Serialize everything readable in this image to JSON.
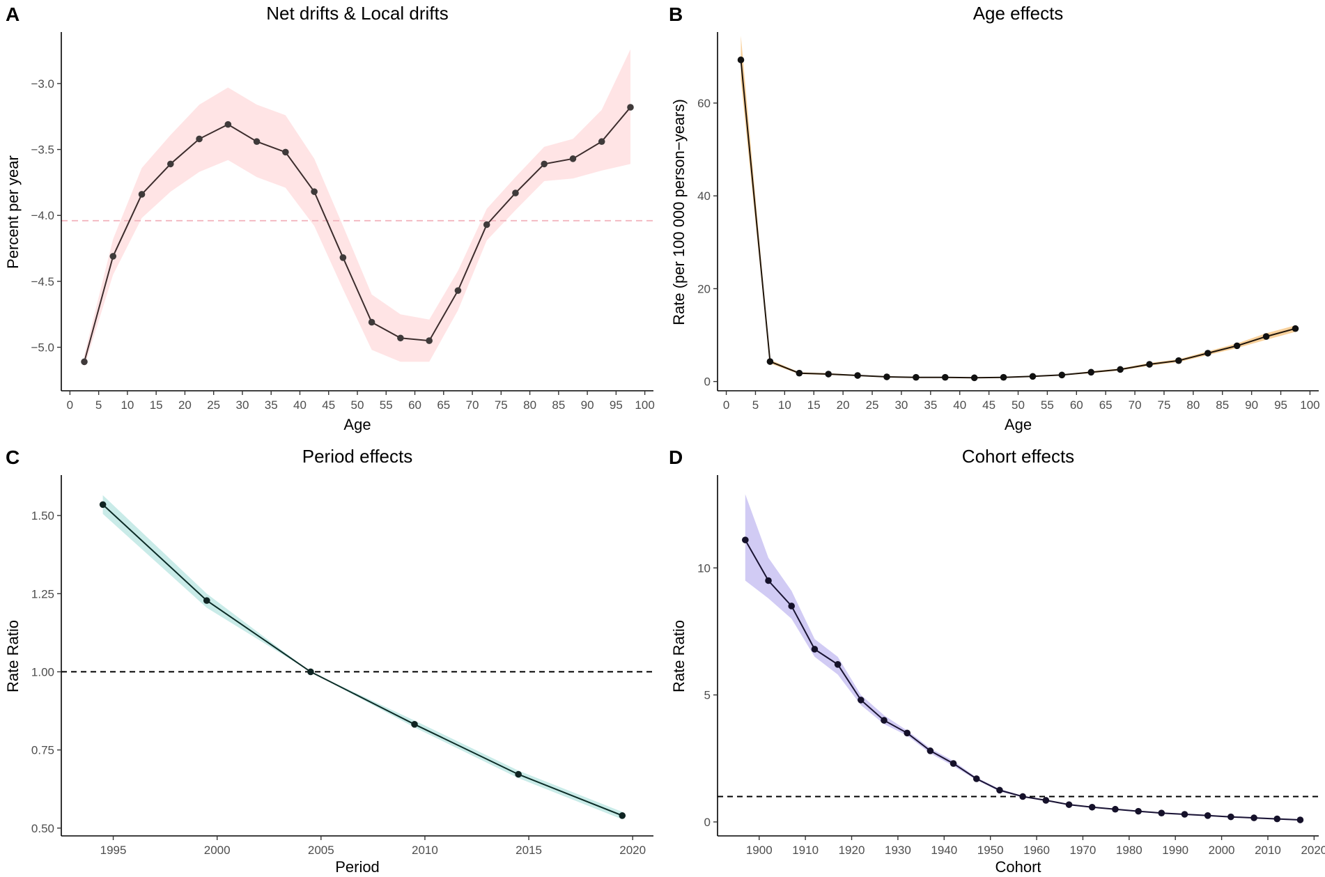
{
  "chart_data": [
    {
      "type": "line",
      "panel_label": "A",
      "title": "Net drifts & Local drifts",
      "xlabel": "Age",
      "ylabel": "Percent per year",
      "xlim": [
        -1.5,
        101.5
      ],
      "ylim": [
        -5.33,
        -2.62
      ],
      "xticks": [
        0,
        5,
        10,
        15,
        20,
        25,
        30,
        35,
        40,
        45,
        50,
        55,
        60,
        65,
        70,
        75,
        80,
        85,
        90,
        95,
        100
      ],
      "yticks": [
        -5.0,
        -4.5,
        -4.0,
        -3.5,
        -3.0
      ],
      "ytick_labels": [
        "−5.0",
        "−4.5",
        "−4.0",
        "−3.5",
        "−3.0"
      ],
      "colors": {
        "band": "#ffdfe1",
        "line": "#3c2c2c",
        "point": "#3f3a3a",
        "ref": "#f2b6bf"
      },
      "reference_line": -4.04,
      "series": [
        {
          "name": "Local drifts",
          "x": [
            2.5,
            7.5,
            12.5,
            17.5,
            22.5,
            27.5,
            32.5,
            37.5,
            42.5,
            47.5,
            52.5,
            57.5,
            62.5,
            67.5,
            72.5,
            77.5,
            82.5,
            87.5,
            92.5,
            97.5
          ],
          "y": [
            -5.11,
            -4.31,
            -3.84,
            -3.61,
            -3.42,
            -3.31,
            -3.44,
            -3.52,
            -3.82,
            -4.32,
            -4.81,
            -4.93,
            -4.95,
            -4.57,
            -4.07,
            -3.83,
            -3.61,
            -3.57,
            -3.44,
            -3.18
          ],
          "lower": [
            -5.15,
            -4.45,
            -4.02,
            -3.82,
            -3.67,
            -3.58,
            -3.71,
            -3.79,
            -4.08,
            -4.56,
            -5.02,
            -5.11,
            -5.11,
            -4.72,
            -4.19,
            -3.96,
            -3.74,
            -3.72,
            -3.66,
            -3.61
          ],
          "upper": [
            -5.06,
            -4.18,
            -3.64,
            -3.39,
            -3.16,
            -3.03,
            -3.16,
            -3.24,
            -3.57,
            -4.08,
            -4.6,
            -4.75,
            -4.79,
            -4.42,
            -3.95,
            -3.71,
            -3.48,
            -3.42,
            -3.2,
            -2.74
          ]
        }
      ]
    },
    {
      "type": "line",
      "panel_label": "B",
      "title": "Age effects",
      "xlabel": "Age",
      "ylabel": "Rate (per 100 000 person−years)",
      "xlim": [
        -1.5,
        101.5
      ],
      "ylim": [
        -2,
        75
      ],
      "xticks": [
        0,
        5,
        10,
        15,
        20,
        25,
        30,
        35,
        40,
        45,
        50,
        55,
        60,
        65,
        70,
        75,
        80,
        85,
        90,
        95,
        100
      ],
      "yticks": [
        0,
        20,
        40,
        60
      ],
      "ytick_labels": [
        "0",
        "20",
        "40",
        "60"
      ],
      "colors": {
        "band": "#f7c98b",
        "line": "#1e140a",
        "point": "#111111",
        "ref": ""
      },
      "series": [
        {
          "name": "Age effects",
          "x": [
            2.5,
            7.5,
            12.5,
            17.5,
            22.5,
            27.5,
            32.5,
            37.5,
            42.5,
            47.5,
            52.5,
            57.5,
            62.5,
            67.5,
            72.5,
            77.5,
            82.5,
            87.5,
            92.5,
            97.5
          ],
          "y": [
            69.3,
            4.3,
            1.8,
            1.6,
            1.3,
            1.0,
            0.9,
            0.9,
            0.8,
            0.9,
            1.1,
            1.4,
            2.0,
            2.6,
            3.7,
            4.5,
            6.1,
            7.7,
            9.7,
            11.4
          ],
          "lower": [
            65.0,
            3.9,
            1.6,
            1.4,
            1.2,
            0.9,
            0.8,
            0.8,
            0.7,
            0.8,
            1.0,
            1.3,
            1.8,
            2.4,
            3.4,
            4.2,
            5.7,
            7.2,
            9.0,
            10.7
          ],
          "upper": [
            74.5,
            4.7,
            2.0,
            1.8,
            1.4,
            1.1,
            1.0,
            1.0,
            0.9,
            1.0,
            1.2,
            1.5,
            2.2,
            2.8,
            4.0,
            4.8,
            6.5,
            8.2,
            10.4,
            12.1
          ]
        }
      ]
    },
    {
      "type": "line",
      "panel_label": "C",
      "title": "Period effects",
      "xlabel": "Period",
      "ylabel": "Rate Ratio",
      "xlim": [
        1992.5,
        2021
      ],
      "ylim": [
        0.475,
        1.625
      ],
      "xticks": [
        1995,
        2000,
        2005,
        2010,
        2015,
        2020
      ],
      "yticks": [
        0.5,
        0.75,
        1.0,
        1.25,
        1.5
      ],
      "ytick_labels": [
        "0.50",
        "0.75",
        "1.00",
        "1.25",
        "1.50"
      ],
      "colors": {
        "band": "#bfe8e4",
        "line": "#0b2b26",
        "point": "#0f2422",
        "ref": "#000000"
      },
      "reference_line": 1.0,
      "series": [
        {
          "name": "Period effects",
          "x": [
            1994.5,
            1999.5,
            2004.5,
            2009.5,
            2014.5,
            2019.5
          ],
          "y": [
            1.535,
            1.228,
            1.0,
            0.832,
            0.672,
            0.54
          ],
          "lower": [
            1.505,
            1.205,
            1.0,
            0.822,
            0.66,
            0.528
          ],
          "upper": [
            1.565,
            1.25,
            1.0,
            0.844,
            0.684,
            0.552
          ]
        }
      ]
    },
    {
      "type": "line",
      "panel_label": "D",
      "title": "Cohort effects",
      "xlabel": "Cohort",
      "ylabel": "Rate Ratio",
      "xlim": [
        1891,
        2021
      ],
      "ylim": [
        -0.55,
        13.6
      ],
      "xticks": [
        1900,
        1910,
        1920,
        1930,
        1940,
        1950,
        1960,
        1970,
        1980,
        1990,
        2000,
        2010,
        2020
      ],
      "yticks": [
        0,
        5,
        10
      ],
      "ytick_labels": [
        "0",
        "5",
        "10"
      ],
      "colors": {
        "band": "#c9c2f2",
        "line": "#1a1433",
        "point": "#15112a",
        "ref": "#000000"
      },
      "reference_line": 1.0,
      "series": [
        {
          "name": "Cohort effects",
          "x": [
            1897,
            1902,
            1907,
            1912,
            1917,
            1922,
            1927,
            1932,
            1937,
            1942,
            1947,
            1952,
            1957,
            1962,
            1967,
            1972,
            1977,
            1982,
            1987,
            1992,
            1997,
            2002,
            2007,
            2012,
            2017
          ],
          "y": [
            11.1,
            9.5,
            8.5,
            6.8,
            6.2,
            4.8,
            4.0,
            3.5,
            2.8,
            2.3,
            1.7,
            1.25,
            1.0,
            0.85,
            0.68,
            0.58,
            0.5,
            0.42,
            0.35,
            0.3,
            0.25,
            0.2,
            0.16,
            0.12,
            0.08
          ],
          "lower": [
            9.5,
            8.8,
            8.0,
            6.5,
            5.8,
            4.6,
            3.85,
            3.4,
            2.7,
            2.2,
            1.65,
            1.2,
            0.97,
            0.82,
            0.65,
            0.55,
            0.47,
            0.39,
            0.32,
            0.27,
            0.22,
            0.17,
            0.13,
            0.09,
            0.05
          ],
          "upper": [
            12.9,
            10.4,
            9.1,
            7.2,
            6.5,
            5.0,
            4.2,
            3.6,
            2.9,
            2.4,
            1.75,
            1.3,
            1.03,
            0.88,
            0.71,
            0.61,
            0.53,
            0.45,
            0.38,
            0.33,
            0.28,
            0.23,
            0.19,
            0.15,
            0.11
          ]
        }
      ]
    }
  ]
}
